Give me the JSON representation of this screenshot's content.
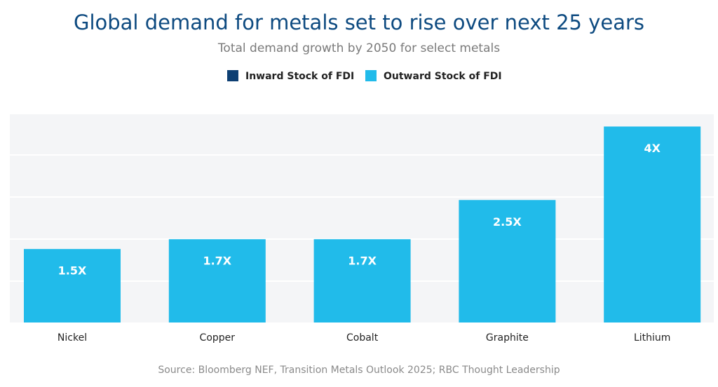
{
  "chart_data": {
    "type": "bar",
    "title": "Global demand for metals set to rise over next 25 years",
    "subtitle": "Total demand growth by 2050 for select metals",
    "source": "Source: Bloomberg NEF, Transition Metals Outlook 2025; RBC Thought Leadership",
    "categories": [
      "Nickel",
      "Copper",
      "Cobalt",
      "Graphite",
      "Lithium"
    ],
    "series": [
      {
        "name": "Inward Stock of FDI",
        "color": "#0d3f73",
        "values": [
          null,
          null,
          null,
          null,
          null
        ]
      },
      {
        "name": "Outward Stock of FDI",
        "color": "#21bbea",
        "values": [
          1.5,
          1.7,
          1.7,
          2.5,
          4
        ],
        "value_labels": [
          "1.5X",
          "1.7X",
          "1.7X",
          "2.5X",
          "4X"
        ]
      }
    ],
    "ylim": [
      0,
      4.25
    ]
  }
}
